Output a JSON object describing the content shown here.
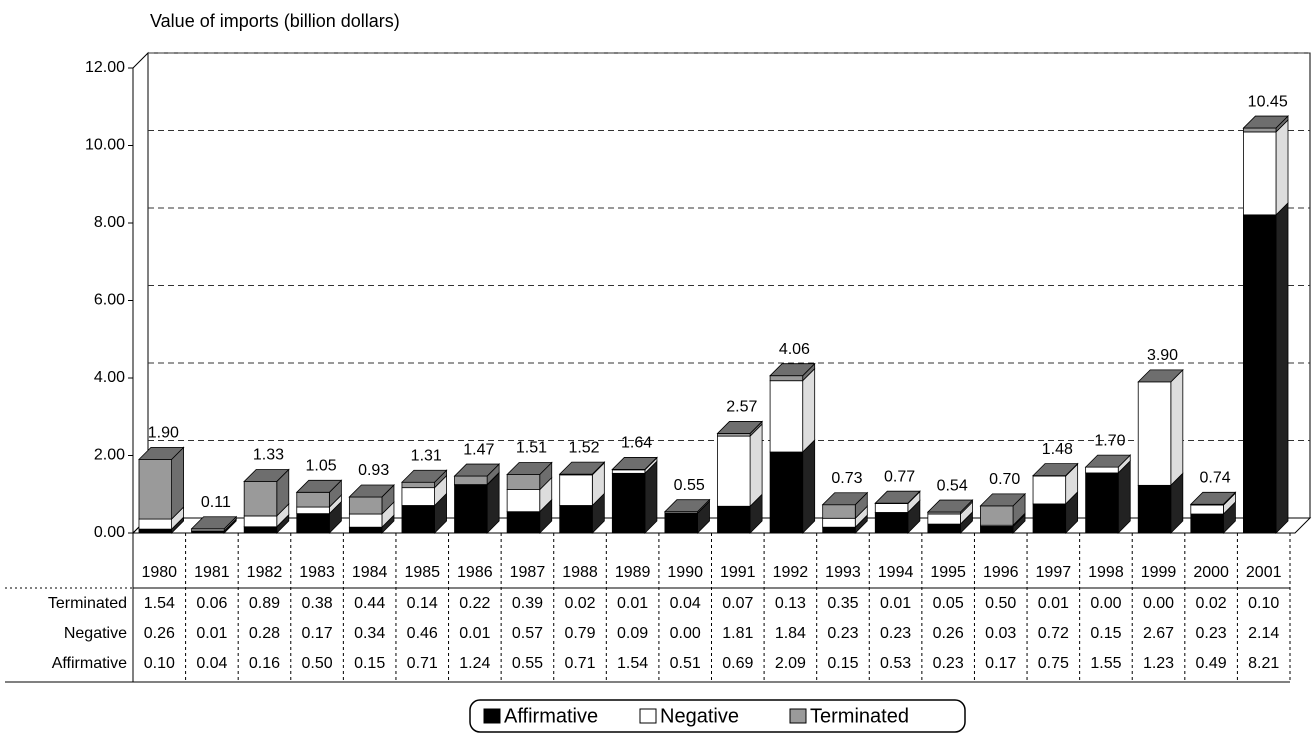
{
  "chart_data": {
    "type": "bar3d_stacked",
    "y_axis_label": "Value of imports (billion dollars)",
    "categories": [
      "1980",
      "1981",
      "1982",
      "1983",
      "1984",
      "1985",
      "1986",
      "1987",
      "1988",
      "1989",
      "1990",
      "1991",
      "1992",
      "1993",
      "1994",
      "1995",
      "1996",
      "1997",
      "1998",
      "1999",
      "2000",
      "2001"
    ],
    "series": [
      {
        "name": "Affirmative",
        "color": "#000000",
        "values": [
          0.1,
          0.04,
          0.16,
          0.5,
          0.15,
          0.71,
          1.24,
          0.55,
          0.71,
          1.54,
          0.51,
          0.69,
          2.09,
          0.15,
          0.53,
          0.23,
          0.17,
          0.75,
          1.55,
          1.23,
          0.49,
          8.21
        ],
        "value_labels": [
          "0.10",
          "0.04",
          "0.16",
          "0.50",
          "0.15",
          "0.71",
          "1.24",
          "0.55",
          "0.71",
          "1.54",
          "0.51",
          "0.69",
          "2.09",
          "0.15",
          "0.53",
          "0.23",
          "0.17",
          "0.75",
          "1.55",
          "1.23",
          "0.49",
          "8.21"
        ]
      },
      {
        "name": "Negative",
        "color": "#ffffff",
        "values": [
          0.26,
          0.01,
          0.28,
          0.17,
          0.34,
          0.46,
          0.01,
          0.57,
          0.79,
          0.09,
          0.0,
          1.81,
          1.84,
          0.23,
          0.23,
          0.26,
          0.03,
          0.72,
          0.15,
          2.67,
          0.23,
          2.14
        ],
        "value_labels": [
          "0.26",
          "0.01",
          "0.28",
          "0.17",
          "0.34",
          "0.46",
          "0.01",
          "0.57",
          "0.79",
          "0.09",
          "0.00",
          "1.81",
          "1.84",
          "0.23",
          "0.23",
          "0.26",
          "0.03",
          "0.72",
          "0.15",
          "2.67",
          "0.23",
          "2.14"
        ]
      },
      {
        "name": "Terminated",
        "color": "#9a9a9a",
        "values": [
          1.54,
          0.06,
          0.89,
          0.38,
          0.44,
          0.14,
          0.22,
          0.39,
          0.02,
          0.01,
          0.04,
          0.07,
          0.13,
          0.35,
          0.01,
          0.05,
          0.5,
          0.01,
          0.0,
          0.0,
          0.02,
          0.1
        ],
        "value_labels": [
          "1.54",
          "0.06",
          "0.89",
          "0.38",
          "0.44",
          "0.14",
          "0.22",
          "0.39",
          "0.02",
          "0.01",
          "0.04",
          "0.07",
          "0.13",
          "0.35",
          "0.01",
          "0.05",
          "0.50",
          "0.01",
          "0.00",
          "0.00",
          "0.02",
          "0.10"
        ]
      }
    ],
    "total_labels": [
      "1.90",
      "0.11",
      "1.33",
      "1.05",
      "0.93",
      "1.31",
      "1.47",
      "1.51",
      "1.52",
      "1.64",
      "0.55",
      "2.57",
      "4.06",
      "0.73",
      "0.77",
      "0.54",
      "0.70",
      "1.48",
      "1.70",
      "3.90",
      "0.74",
      "10.45"
    ],
    "ylim": [
      0,
      12
    ],
    "yticks": [
      {
        "value": 0,
        "label": "0.00"
      },
      {
        "value": 2,
        "label": "2.00"
      },
      {
        "value": 4,
        "label": "4.00"
      },
      {
        "value": 6,
        "label": "6.00"
      },
      {
        "value": 8,
        "label": "8.00"
      },
      {
        "value": 10,
        "label": "10.00"
      },
      {
        "value": 12,
        "label": "12.00"
      }
    ],
    "grid": true,
    "legend": "bottom"
  }
}
